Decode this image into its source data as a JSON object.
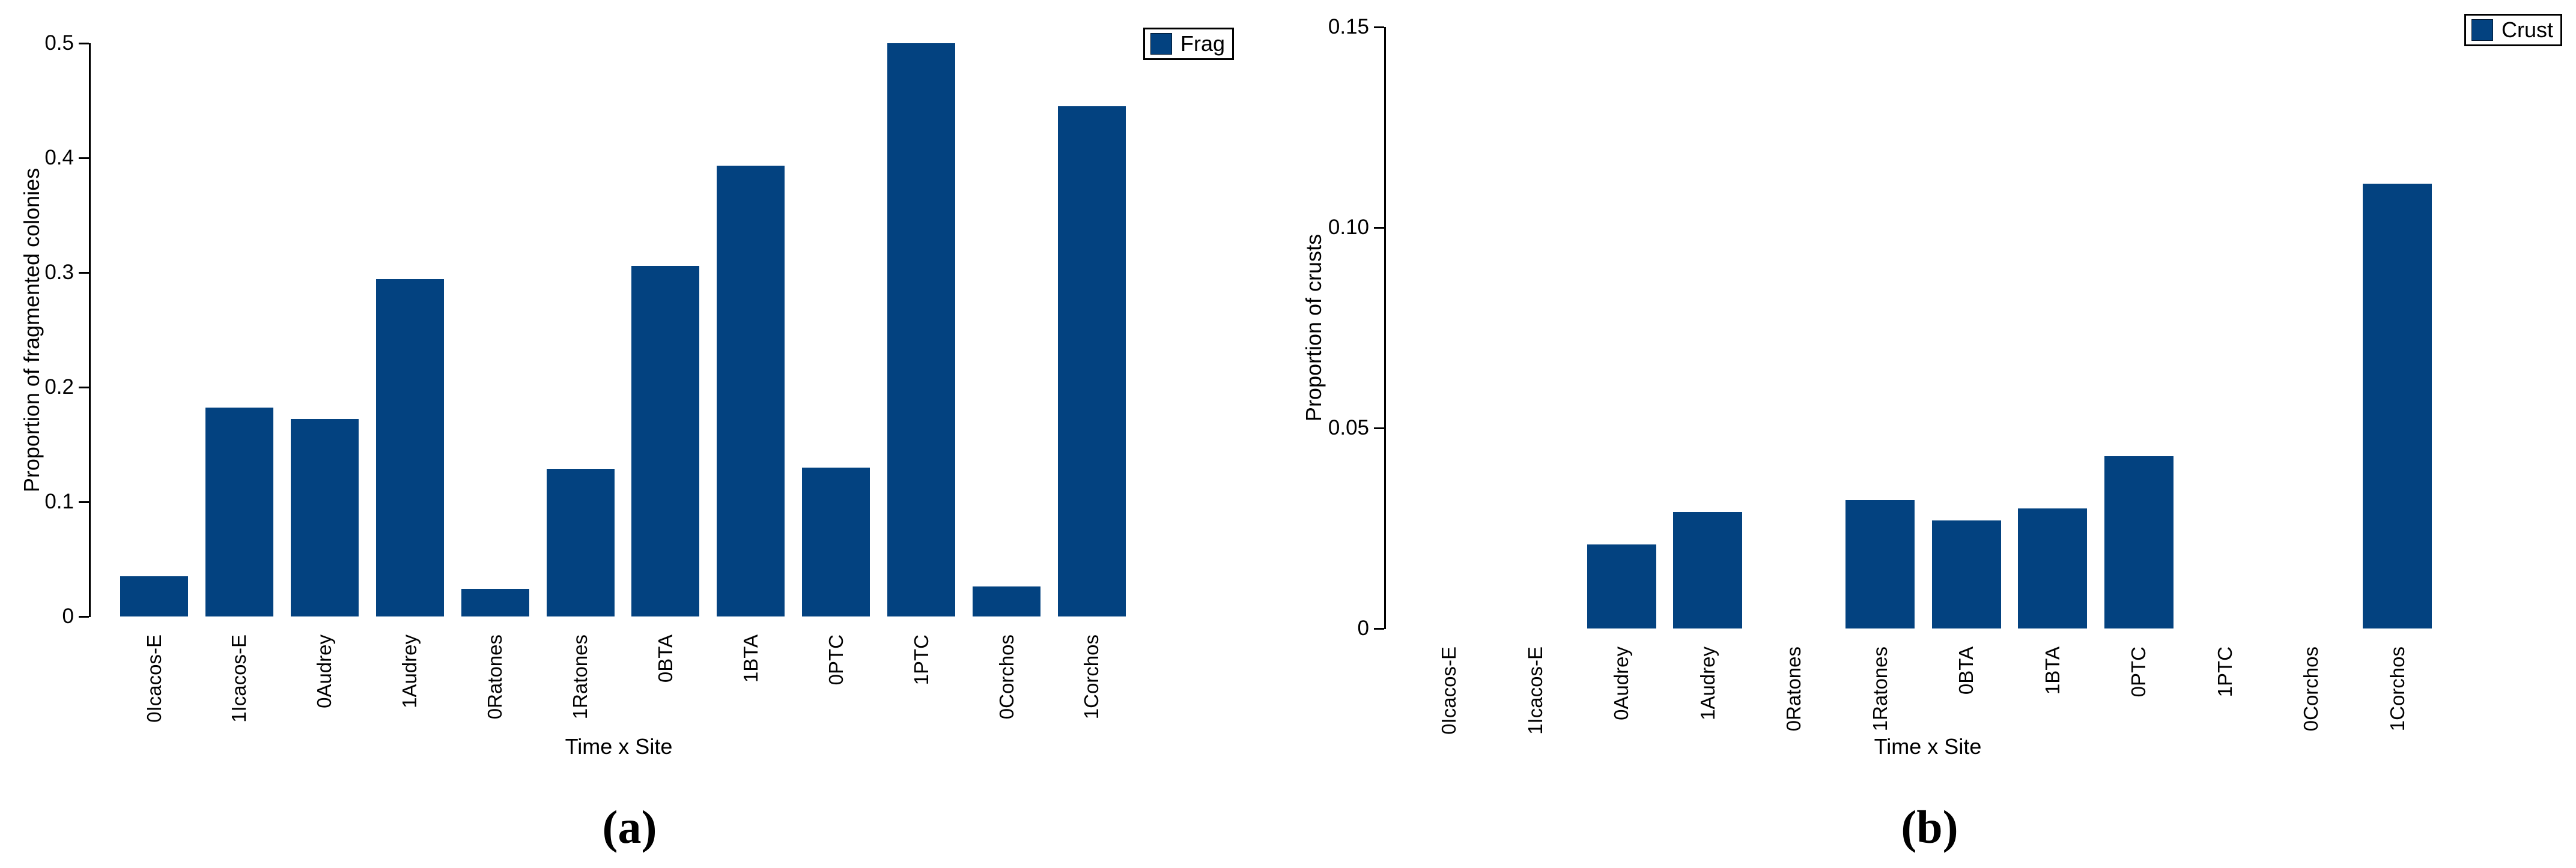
{
  "figure": {
    "background": "#ffffff",
    "bar_color": "#034280",
    "axis_color": "#000000",
    "text_color": "#000000"
  },
  "chart_data": [
    {
      "type": "bar",
      "panel_caption": "(a)",
      "legend": "Frag",
      "xlabel": "Time x Site",
      "ylabel": "Proportion of fragmented colonies",
      "categories": [
        "0Icacos-E",
        "1Icacos-E",
        "0Audrey",
        "1Audrey",
        "0Ratones",
        "1Ratones",
        "0BTA",
        "1BTA",
        "0PTC",
        "1PTC",
        "0Corchos",
        "1Corchos"
      ],
      "values": [
        0.035,
        0.182,
        0.172,
        0.294,
        0.024,
        0.129,
        0.306,
        0.393,
        0.13,
        0.5,
        0.026,
        0.445
      ],
      "ylim": [
        0,
        0.5
      ],
      "yticks": [
        0,
        0.1,
        0.2,
        0.3,
        0.4,
        0.5
      ],
      "ytick_labels": [
        "0",
        "0.1",
        "0.2",
        "0.3",
        "0.4",
        "0.5"
      ],
      "grid": false,
      "legend_position": "top-right"
    },
    {
      "type": "bar",
      "panel_caption": "(b)",
      "legend": "Crust",
      "xlabel": "Time x Site",
      "ylabel": "Proportion of crusts",
      "categories": [
        "0Icacos-E",
        "1Icacos-E",
        "0Audrey",
        "1Audrey",
        "0Ratones",
        "1Ratones",
        "0BTA",
        "1BTA",
        "0PTC",
        "1PTC",
        "0Corchos",
        "1Corchos"
      ],
      "values": [
        0,
        0,
        0.021,
        0.029,
        0,
        0.032,
        0.027,
        0.03,
        0.043,
        0,
        0,
        0.111
      ],
      "ylim": [
        0,
        0.15
      ],
      "yticks": [
        0,
        0.05,
        0.1,
        0.15
      ],
      "ytick_labels": [
        "0",
        "0.05",
        "0.10",
        "0.15"
      ],
      "grid": false,
      "legend_position": "top-right"
    }
  ]
}
